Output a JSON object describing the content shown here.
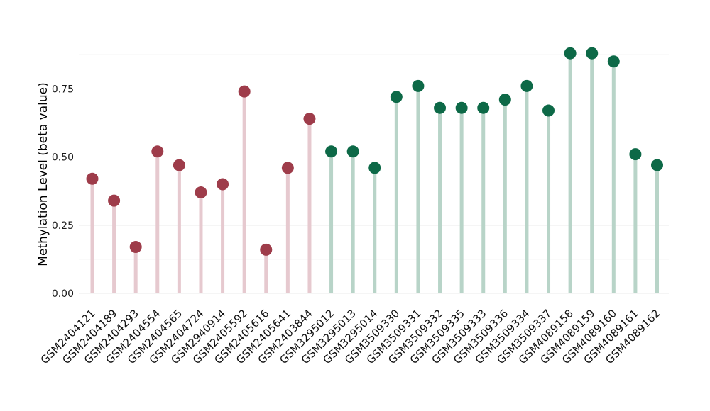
{
  "chart_data": {
    "type": "lollipop",
    "title": "",
    "xlabel": "",
    "ylabel": "Methylation Level (beta value)",
    "ylim": [
      0,
      0.93
    ],
    "grid": "on",
    "legend": "none",
    "yticks": [
      {
        "value": 0.0,
        "label": "0.00"
      },
      {
        "value": 0.25,
        "label": "0.25"
      },
      {
        "value": 0.5,
        "label": "0.50"
      },
      {
        "value": 0.75,
        "label": "0.75"
      }
    ],
    "minor_gridlines": [
      0.125,
      0.375,
      0.625,
      0.875
    ],
    "series": [
      {
        "name": "group-1-red",
        "dot_color": "#9e3c4a",
        "stem_color": "#e6c9cf",
        "categories": [
          "GSM2404121",
          "GSM2404189",
          "GSM2404293",
          "GSM2404554",
          "GSM2404565",
          "GSM2404724",
          "GSM2940914",
          "GSM2405592",
          "GSM2405616",
          "GSM2405641",
          "GSM2403844"
        ],
        "values": [
          0.42,
          0.34,
          0.17,
          0.52,
          0.47,
          0.37,
          0.4,
          0.74,
          0.16,
          0.46,
          0.64
        ]
      },
      {
        "name": "group-2-green",
        "dot_color": "#0d6947",
        "stem_color": "#b8d4c8",
        "categories": [
          "GSM3295012",
          "GSM3295013",
          "GSM3295014",
          "GSM3509330",
          "GSM3509331",
          "GSM3509332",
          "GSM3509335",
          "GSM3509333",
          "GSM3509336",
          "GSM3509334",
          "GSM3509337",
          "GSM4089158",
          "GSM4089159",
          "GSM4089160",
          "GSM4089161",
          "GSM4089162"
        ],
        "values": [
          0.52,
          0.52,
          0.46,
          0.72,
          0.76,
          0.68,
          0.68,
          0.68,
          0.71,
          0.76,
          0.67,
          0.88,
          0.88,
          0.85,
          0.51,
          0.47
        ]
      }
    ],
    "colors": {
      "background": "#ffffff",
      "major_grid": "#ebebeb",
      "minor_grid": "#f5f5f5",
      "text": "#1a1a1a"
    }
  }
}
